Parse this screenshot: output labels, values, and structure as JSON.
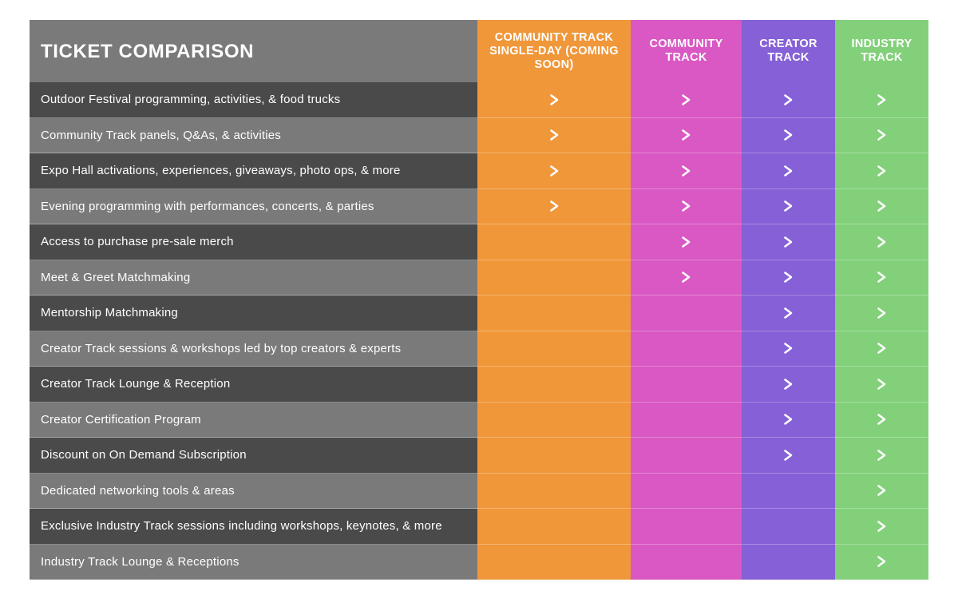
{
  "title": "TICKET COMPARISON",
  "colors": {
    "header_gray": "#7a7a7a",
    "row_dark": "#4a4a4a",
    "row_light": "#7a7a7a",
    "orange": "#f0973a",
    "pink": "#d958c3",
    "purple": "#8560d6",
    "green": "#83d07b",
    "check": "#ffffff"
  },
  "check_icon": "chevron-right-icon",
  "columns": [
    {
      "label": "COMMUNITY TRACK SINGLE-DAY (COMING SOON)",
      "color": "#f0973a"
    },
    {
      "label": "COMMUNITY TRACK",
      "color": "#d958c3"
    },
    {
      "label": "CREATOR TRACK",
      "color": "#8560d6"
    },
    {
      "label": "INDUSTRY TRACK",
      "color": "#83d07b"
    }
  ],
  "rows": [
    {
      "feature": "Outdoor Festival programming, activities, & food trucks",
      "included": [
        true,
        true,
        true,
        true
      ]
    },
    {
      "feature": "Community Track panels, Q&As, & activities",
      "included": [
        true,
        true,
        true,
        true
      ]
    },
    {
      "feature": "Expo Hall activations, experiences, giveaways, photo ops, & more",
      "included": [
        true,
        true,
        true,
        true
      ]
    },
    {
      "feature": "Evening programming with performances, concerts, & parties",
      "included": [
        true,
        true,
        true,
        true
      ]
    },
    {
      "feature": "Access to purchase pre-sale merch",
      "included": [
        false,
        true,
        true,
        true
      ]
    },
    {
      "feature": "Meet & Greet Matchmaking",
      "included": [
        false,
        true,
        true,
        true
      ]
    },
    {
      "feature": "Mentorship Matchmaking",
      "included": [
        false,
        false,
        true,
        true
      ]
    },
    {
      "feature": "Creator Track sessions & workshops led by top creators & experts",
      "included": [
        false,
        false,
        true,
        true
      ]
    },
    {
      "feature": "Creator Track Lounge & Reception",
      "included": [
        false,
        false,
        true,
        true
      ]
    },
    {
      "feature": "Creator Certification Program",
      "included": [
        false,
        false,
        true,
        true
      ]
    },
    {
      "feature": "Discount on On Demand Subscription",
      "included": [
        false,
        false,
        true,
        true
      ]
    },
    {
      "feature": "Dedicated networking tools & areas",
      "included": [
        false,
        false,
        false,
        true
      ]
    },
    {
      "feature": "Exclusive Industry Track sessions including workshops, keynotes, & more",
      "included": [
        false,
        false,
        false,
        true
      ]
    },
    {
      "feature": "Industry Track Lounge & Receptions",
      "included": [
        false,
        false,
        false,
        true
      ]
    }
  ]
}
